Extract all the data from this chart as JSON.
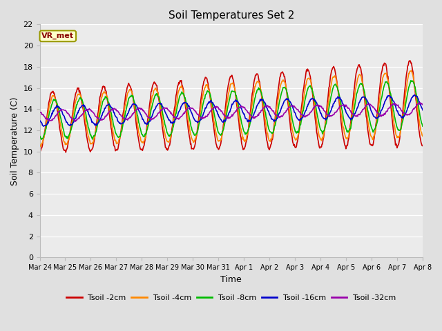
{
  "title": "Soil Temperatures Set 2",
  "xlabel": "Time",
  "ylabel": "Soil Temperature (C)",
  "ylim": [
    0,
    22
  ],
  "yticks": [
    0,
    2,
    4,
    6,
    8,
    10,
    12,
    14,
    16,
    18,
    20,
    22
  ],
  "bg_color": "#e0e0e0",
  "plot_bg": "#ebebeb",
  "grid_color": "#ffffff",
  "annotation_text": "VR_met",
  "annotation_bg": "#ffffcc",
  "annotation_border": "#999900",
  "series_colors": [
    "#cc0000",
    "#ff8800",
    "#00bb00",
    "#0000cc",
    "#9900aa"
  ],
  "series_labels": [
    "Tsoil -2cm",
    "Tsoil -4cm",
    "Tsoil -8cm",
    "Tsoil -16cm",
    "Tsoil -32cm"
  ],
  "line_width": 1.2,
  "x_tick_labels": [
    "Mar 24",
    "Mar 25",
    "Mar 26",
    "Mar 27",
    "Mar 28",
    "Mar 29",
    "Mar 30",
    "Mar 31",
    "Apr 1",
    "Apr 2",
    "Apr 3",
    "Apr 4",
    "Apr 5",
    "Apr 6",
    "Apr 7",
    "Apr 8"
  ],
  "num_days": 15,
  "points_per_day": 48
}
